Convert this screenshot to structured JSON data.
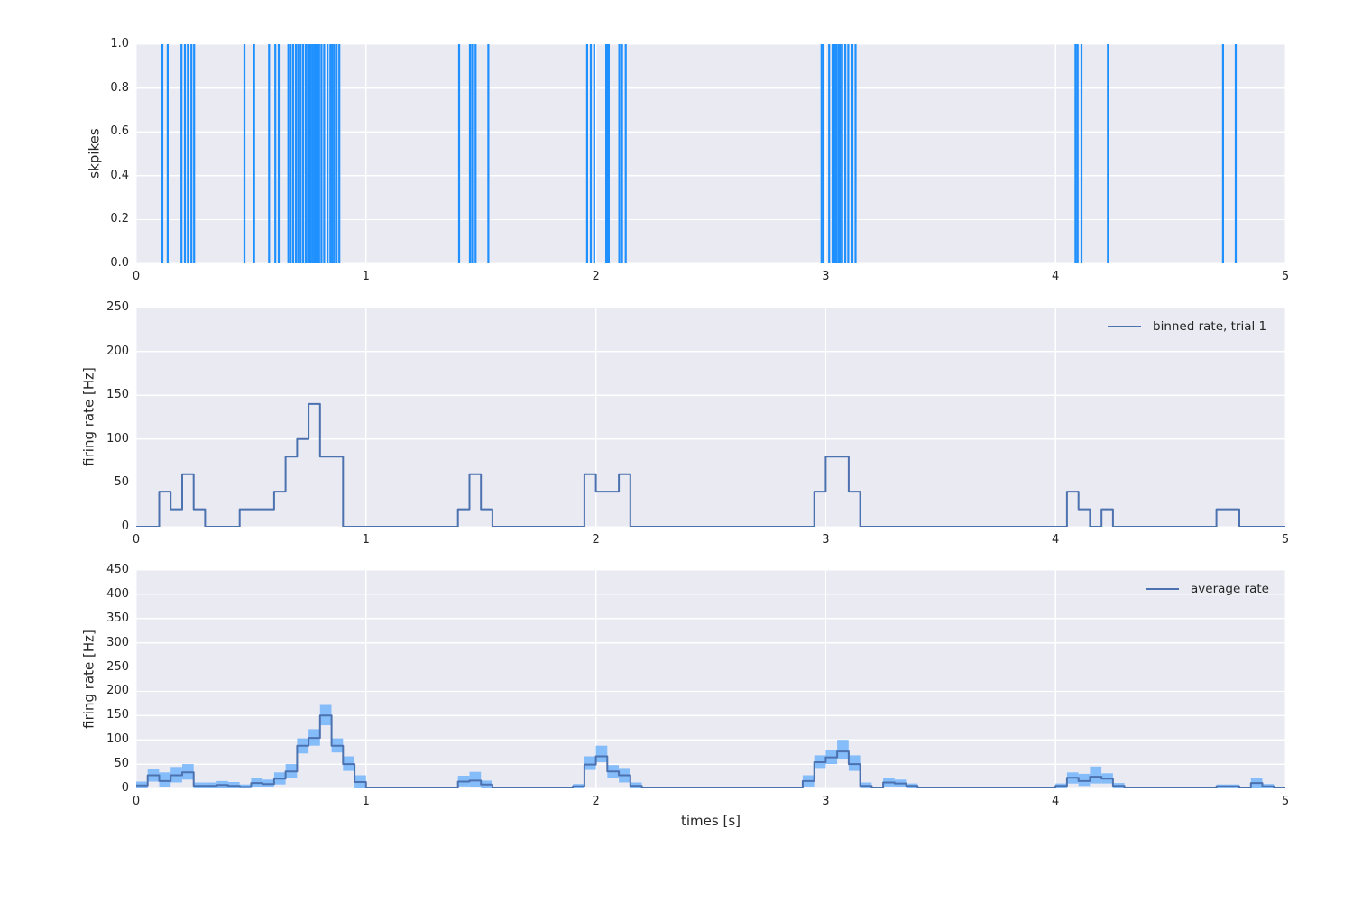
{
  "figure": {
    "background": "#ffffff",
    "axes_background": "#eaeaf2",
    "grid_color": "#ffffff",
    "text_color": "#262626",
    "xlabel": "times [s]"
  },
  "colors": {
    "spike": "#1f90ff",
    "rate_line": "#4c72b0",
    "band_fill": "#85bcfa"
  },
  "chart_data": [
    {
      "id": "spike-raster",
      "type": "scatter",
      "marker": "vline",
      "ylabel": "skpikes",
      "xlim": [
        0,
        5
      ],
      "ylim": [
        0,
        1
      ],
      "grid": true,
      "x_tick_values": [
        0,
        1,
        2,
        3,
        4,
        5
      ],
      "x_tick_labels": [
        "0",
        "1",
        "2",
        "3",
        "4",
        "5"
      ],
      "y_tick_values": [
        1.0,
        0.8,
        0.6,
        0.4,
        0.2,
        0.0
      ],
      "y_tick_labels": [
        "1.0",
        "0.8",
        "0.6",
        "0.4",
        "0.2",
        "0.0"
      ],
      "spike_times": [
        0.114,
        0.137,
        0.197,
        0.212,
        0.225,
        0.24,
        0.252,
        0.471,
        0.513,
        0.578,
        0.605,
        0.62,
        0.662,
        0.672,
        0.683,
        0.695,
        0.705,
        0.715,
        0.726,
        0.738,
        0.747,
        0.752,
        0.758,
        0.766,
        0.774,
        0.781,
        0.789,
        0.796,
        0.806,
        0.818,
        0.833,
        0.845,
        0.853,
        0.862,
        0.872,
        0.884,
        1.405,
        1.452,
        1.462,
        1.477,
        1.532,
        1.962,
        1.978,
        1.993,
        2.045,
        2.048,
        2.052,
        2.056,
        2.102,
        2.114,
        2.13,
        2.982,
        2.99,
        3.015,
        3.03,
        3.038,
        3.046,
        3.055,
        3.063,
        3.072,
        3.085,
        3.098,
        3.116,
        3.13,
        4.087,
        4.096,
        4.113,
        4.228,
        4.729,
        4.784
      ]
    },
    {
      "id": "binned-rate",
      "type": "line",
      "step_mode": "post",
      "ylabel": "firing rate [Hz]",
      "xlim": [
        0,
        5
      ],
      "ylim": [
        0,
        250
      ],
      "grid": true,
      "legend": {
        "label": "binned rate, trial 1",
        "position": "upper right"
      },
      "x_tick_values": [
        0,
        1,
        2,
        3,
        4,
        5
      ],
      "x_tick_labels": [
        "0",
        "1",
        "2",
        "3",
        "4",
        "5"
      ],
      "y_tick_values": [
        250,
        200,
        150,
        100,
        50,
        0
      ],
      "y_tick_labels": [
        "250",
        "200",
        "150",
        "100",
        "50",
        "0"
      ],
      "segments": [
        [
          0.0,
          0.1,
          0
        ],
        [
          0.1,
          0.15,
          40
        ],
        [
          0.15,
          0.2,
          20
        ],
        [
          0.2,
          0.25,
          60
        ],
        [
          0.25,
          0.3,
          20
        ],
        [
          0.3,
          0.45,
          0
        ],
        [
          0.45,
          0.6,
          20
        ],
        [
          0.6,
          0.65,
          40
        ],
        [
          0.65,
          0.7,
          80
        ],
        [
          0.7,
          0.75,
          100
        ],
        [
          0.75,
          0.8,
          140
        ],
        [
          0.8,
          0.9,
          80
        ],
        [
          0.9,
          1.4,
          0
        ],
        [
          1.4,
          1.45,
          20
        ],
        [
          1.45,
          1.5,
          60
        ],
        [
          1.5,
          1.55,
          20
        ],
        [
          1.55,
          1.95,
          0
        ],
        [
          1.95,
          2.0,
          60
        ],
        [
          2.0,
          2.1,
          40
        ],
        [
          2.1,
          2.15,
          60
        ],
        [
          2.15,
          2.95,
          0
        ],
        [
          2.95,
          3.0,
          40
        ],
        [
          3.0,
          3.1,
          80
        ],
        [
          3.1,
          3.15,
          40
        ],
        [
          3.15,
          4.05,
          0
        ],
        [
          4.05,
          4.1,
          40
        ],
        [
          4.1,
          4.15,
          20
        ],
        [
          4.15,
          4.2,
          0
        ],
        [
          4.2,
          4.25,
          20
        ],
        [
          4.25,
          4.7,
          0
        ],
        [
          4.7,
          4.8,
          20
        ],
        [
          4.8,
          5.0,
          0
        ]
      ]
    },
    {
      "id": "average-rate",
      "type": "area",
      "step_mode": "post",
      "xlabel": "times [s]",
      "ylabel": "firing rate [Hz]",
      "xlim": [
        0,
        5
      ],
      "ylim": [
        0,
        450
      ],
      "grid": true,
      "legend": {
        "label": "average rate",
        "position": "upper right"
      },
      "bin_width": 0.05,
      "x_tick_values": [
        0,
        1,
        2,
        3,
        4,
        5
      ],
      "x_tick_labels": [
        "0",
        "1",
        "2",
        "3",
        "4",
        "5"
      ],
      "y_tick_values": [
        450,
        400,
        350,
        300,
        250,
        200,
        150,
        100,
        50,
        0
      ],
      "y_tick_labels": [
        "450",
        "400",
        "350",
        "300",
        "250",
        "200",
        "150",
        "100",
        "50",
        "0"
      ],
      "bins_note": "each entry = [t_start, mean, band_low, band_high]; bins not listed are 0",
      "bins": [
        [
          0.0,
          6,
          0,
          14
        ],
        [
          0.05,
          27,
          14,
          40
        ],
        [
          0.1,
          15,
          2,
          33
        ],
        [
          0.15,
          27,
          12,
          44
        ],
        [
          0.2,
          33,
          18,
          50
        ],
        [
          0.25,
          5,
          0,
          12
        ],
        [
          0.3,
          5,
          0,
          12
        ],
        [
          0.35,
          7,
          0,
          15
        ],
        [
          0.4,
          5,
          0,
          13
        ],
        [
          0.45,
          3,
          0,
          8
        ],
        [
          0.5,
          11,
          2,
          22
        ],
        [
          0.55,
          9,
          2,
          18
        ],
        [
          0.6,
          20,
          8,
          33
        ],
        [
          0.65,
          35,
          22,
          50
        ],
        [
          0.7,
          88,
          72,
          103
        ],
        [
          0.75,
          104,
          88,
          122
        ],
        [
          0.8,
          150,
          130,
          172
        ],
        [
          0.85,
          88,
          74,
          103
        ],
        [
          0.9,
          50,
          36,
          66
        ],
        [
          0.95,
          13,
          0,
          27
        ],
        [
          1.4,
          14,
          4,
          26
        ],
        [
          1.45,
          16,
          2,
          34
        ],
        [
          1.5,
          8,
          0,
          16
        ],
        [
          1.9,
          4,
          0,
          9
        ],
        [
          1.95,
          49,
          38,
          66
        ],
        [
          2.0,
          66,
          54,
          88
        ],
        [
          2.05,
          35,
          22,
          48
        ],
        [
          2.1,
          27,
          12,
          42
        ],
        [
          2.15,
          5,
          0,
          12
        ],
        [
          2.9,
          15,
          4,
          27
        ],
        [
          2.95,
          54,
          42,
          68
        ],
        [
          3.0,
          64,
          50,
          80
        ],
        [
          3.05,
          76,
          60,
          100
        ],
        [
          3.1,
          50,
          36,
          68
        ],
        [
          3.15,
          5,
          0,
          12
        ],
        [
          3.25,
          12,
          4,
          22
        ],
        [
          3.3,
          10,
          2,
          18
        ],
        [
          3.35,
          5,
          0,
          10
        ],
        [
          4.0,
          5,
          0,
          10
        ],
        [
          4.05,
          22,
          10,
          33
        ],
        [
          4.1,
          15,
          5,
          30
        ],
        [
          4.15,
          24,
          10,
          45
        ],
        [
          4.2,
          20,
          10,
          31
        ],
        [
          4.25,
          5,
          0,
          11
        ],
        [
          4.7,
          4,
          0,
          8
        ],
        [
          4.75,
          4,
          0,
          8
        ],
        [
          4.85,
          11,
          0,
          22
        ],
        [
          4.9,
          4,
          0,
          9
        ]
      ]
    }
  ]
}
